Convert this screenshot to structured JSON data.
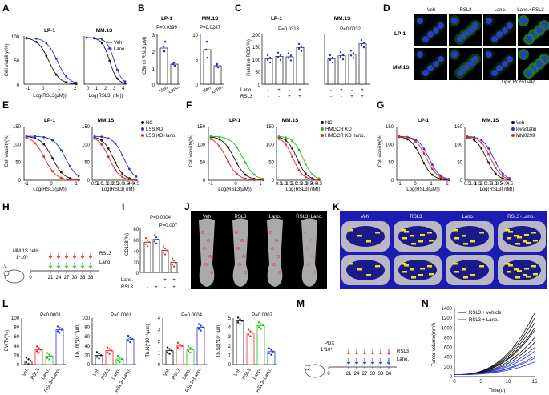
{
  "panels": {
    "A": {
      "letter": "A",
      "ylabel": "Cell viability(%)",
      "sub1": "LP-1",
      "sub2": "MM.1S",
      "xlabel1": "Log(RSL3(μM))",
      "xlabel2": "Log(RSL3( nM))",
      "legend": [
        "Veh",
        "Lano."
      ],
      "yticks": [
        "0",
        "50",
        "100"
      ],
      "xticks1": [
        "-1",
        "0",
        "1",
        "2"
      ],
      "xticks2": [
        "0",
        "1",
        "2",
        "3",
        "4"
      ]
    },
    "B": {
      "letter": "B",
      "ylabel": "IC50 of RSL3(μM)",
      "sub1": "LP-1",
      "sub2": "MM.1S",
      "p1": "P=0.0399",
      "p2": "P=0.0287",
      "cats": [
        "Veh",
        "Lano."
      ],
      "yticks1": [
        "0",
        "1",
        "2",
        "3"
      ],
      "yticks2": [
        "0",
        "5",
        "10"
      ]
    },
    "C": {
      "letter": "C",
      "ylabel": "Relative ROS(%)",
      "sub1": "LP-1",
      "sub2": "MM.1S",
      "p1": "P=0.0313",
      "p2": "P=0.0032",
      "row1": "Lano.",
      "row2": "RSL3",
      "signs1": [
        "-",
        "+",
        "-",
        "+"
      ],
      "signs2": [
        "-",
        "-",
        "+",
        "+"
      ],
      "yticks": [
        "0",
        "50",
        "100",
        "150",
        "200"
      ]
    },
    "D": {
      "letter": "D",
      "cols": [
        "Veh",
        "RSL3",
        "Lano.",
        "Lano.+RSL3"
      ],
      "rows": [
        "LP-1",
        "MM.1S"
      ],
      "caption": "Lipid ROS/DAPI"
    },
    "E": {
      "letter": "E",
      "ylabel": "Cell viability(%)",
      "sub1": "LP-1",
      "sub2": "MM.1S",
      "xlabel1": "Log(RSL3(μM))",
      "xlabel2": "Log(RSL3( nM))",
      "legend": [
        "NC",
        "LSS KD",
        "LSS KD+lano."
      ],
      "yticks": [
        "0",
        "50",
        "100",
        "150"
      ],
      "xticks1": [
        "-1",
        "0",
        "1"
      ],
      "xticks2": [
        "0.5",
        "1.0",
        "1.5",
        "2.0",
        "2.5",
        "3.0",
        "3.5",
        "4.0",
        "4.5"
      ]
    },
    "F": {
      "letter": "F",
      "ylabel": "Cell viability(%)",
      "sub1": "LP-1",
      "sub2": "MM.1S",
      "xlabel1": "Log(RSL3(μM))",
      "xlabel2": "Log(RSL3( nM))",
      "legend": [
        "NC",
        "HMGCR KD",
        "HMGCR KD+lano."
      ],
      "yticks": [
        "0",
        "50",
        "100",
        "150"
      ],
      "xticks1": [
        "-1",
        "0",
        "1"
      ],
      "xticks2": [
        "0.5",
        "1.0",
        "1.5",
        "2.0",
        "2.5",
        "3.0",
        "3.5",
        "4.0",
        "4.5"
      ]
    },
    "G": {
      "letter": "G",
      "ylabel": "Cell viability(%)",
      "sub1": "LP-1",
      "sub2": "MM.1S",
      "xlabel1": "Log(RSL3(μM))",
      "xlabel2": "Log(RSL3( nM))",
      "legend": [
        "Veh",
        "lovastatin",
        "MM0299"
      ],
      "yticks": [
        "0",
        "50",
        "100",
        "150"
      ],
      "xticks1": [
        "-1",
        "0",
        "1",
        "2"
      ],
      "xticks2": [
        "0.5",
        "1.0",
        "1.5",
        "2.0",
        "2.5",
        "3.0",
        "3.5",
        "4.0",
        "4.5"
      ]
    },
    "H": {
      "letter": "H",
      "cells": "MM.1S cells",
      "dose": "1*10⁶",
      "days": [
        "0",
        "21",
        "24",
        "27",
        "30",
        "33",
        "36"
      ],
      "drug1": "RSL3",
      "drug2": "Lano.",
      "route": "i.v."
    },
    "I": {
      "letter": "I",
      "ylabel": "CD138(%)",
      "p1": "P=0.0004",
      "p2": "P=0.007",
      "row1": "Lano.",
      "row2": "RSL3",
      "signs1": [
        "-",
        "-",
        "+",
        "+"
      ],
      "signs2": [
        "-",
        "+",
        "-",
        "+"
      ],
      "yticks": [
        "0",
        "20",
        "40",
        "60",
        "80"
      ]
    },
    "J": {
      "letter": "J",
      "cols": [
        "Veh",
        "RSL3",
        "Lano.",
        "RSL3+Lano."
      ]
    },
    "K": {
      "letter": "K",
      "cols": [
        "Veh",
        "RSL3",
        "Lano.",
        "RSL3+Lano."
      ]
    },
    "L": {
      "letter": "L",
      "cats": [
        "Veh",
        "RSL3",
        "Lano.",
        "RSL3+Lano."
      ],
      "plots": [
        {
          "ylabel": "BV/TV(%)",
          "p": "P<0.0001",
          "yticks": [
            "0",
            "20",
            "40",
            "60",
            "80",
            "100"
          ]
        },
        {
          "ylabel": "Tb.Th(*10⁻³μm)",
          "p": "P=0.0001",
          "yticks": [
            "0",
            "20",
            "40",
            "60",
            "80",
            "100"
          ]
        },
        {
          "ylabel": "Tb.N(*10⁻¹/μm)",
          "p": "P=0.0004",
          "yticks": [
            "0",
            "1",
            "2",
            "3",
            "4"
          ]
        },
        {
          "ylabel": "Tb.Sp(*10⁻¹μm)",
          "p": "P=0.0007",
          "yticks": [
            "0",
            "1",
            "2",
            "3",
            "4",
            "5"
          ]
        }
      ]
    },
    "M": {
      "letter": "M",
      "cells": "PDX",
      "dose": "1*10⁶",
      "days": [
        "0",
        "21",
        "24",
        "27",
        "30",
        "33",
        "36"
      ],
      "drug1": "RSL3",
      "drug2": "Lano."
    },
    "N": {
      "letter": "N",
      "ylabel": "Tumor volume(mm³)",
      "xlabel": "Time(d)",
      "legend": [
        "RSL3 + vehicle",
        "RSL3 + Lano."
      ],
      "yticks": [
        "0",
        "200",
        "400",
        "600",
        "800",
        "1000",
        "1200",
        "1400"
      ],
      "xticks": [
        "0",
        "5",
        "10",
        "15"
      ]
    }
  },
  "colors": {
    "black": "#111111",
    "blue": "#2233dd",
    "red": "#ee2222",
    "green": "#22bb22",
    "grey": "#888888",
    "bone": "#c8c8c8",
    "yellow": "#f4e020",
    "navy": "#1a1a8c"
  }
}
